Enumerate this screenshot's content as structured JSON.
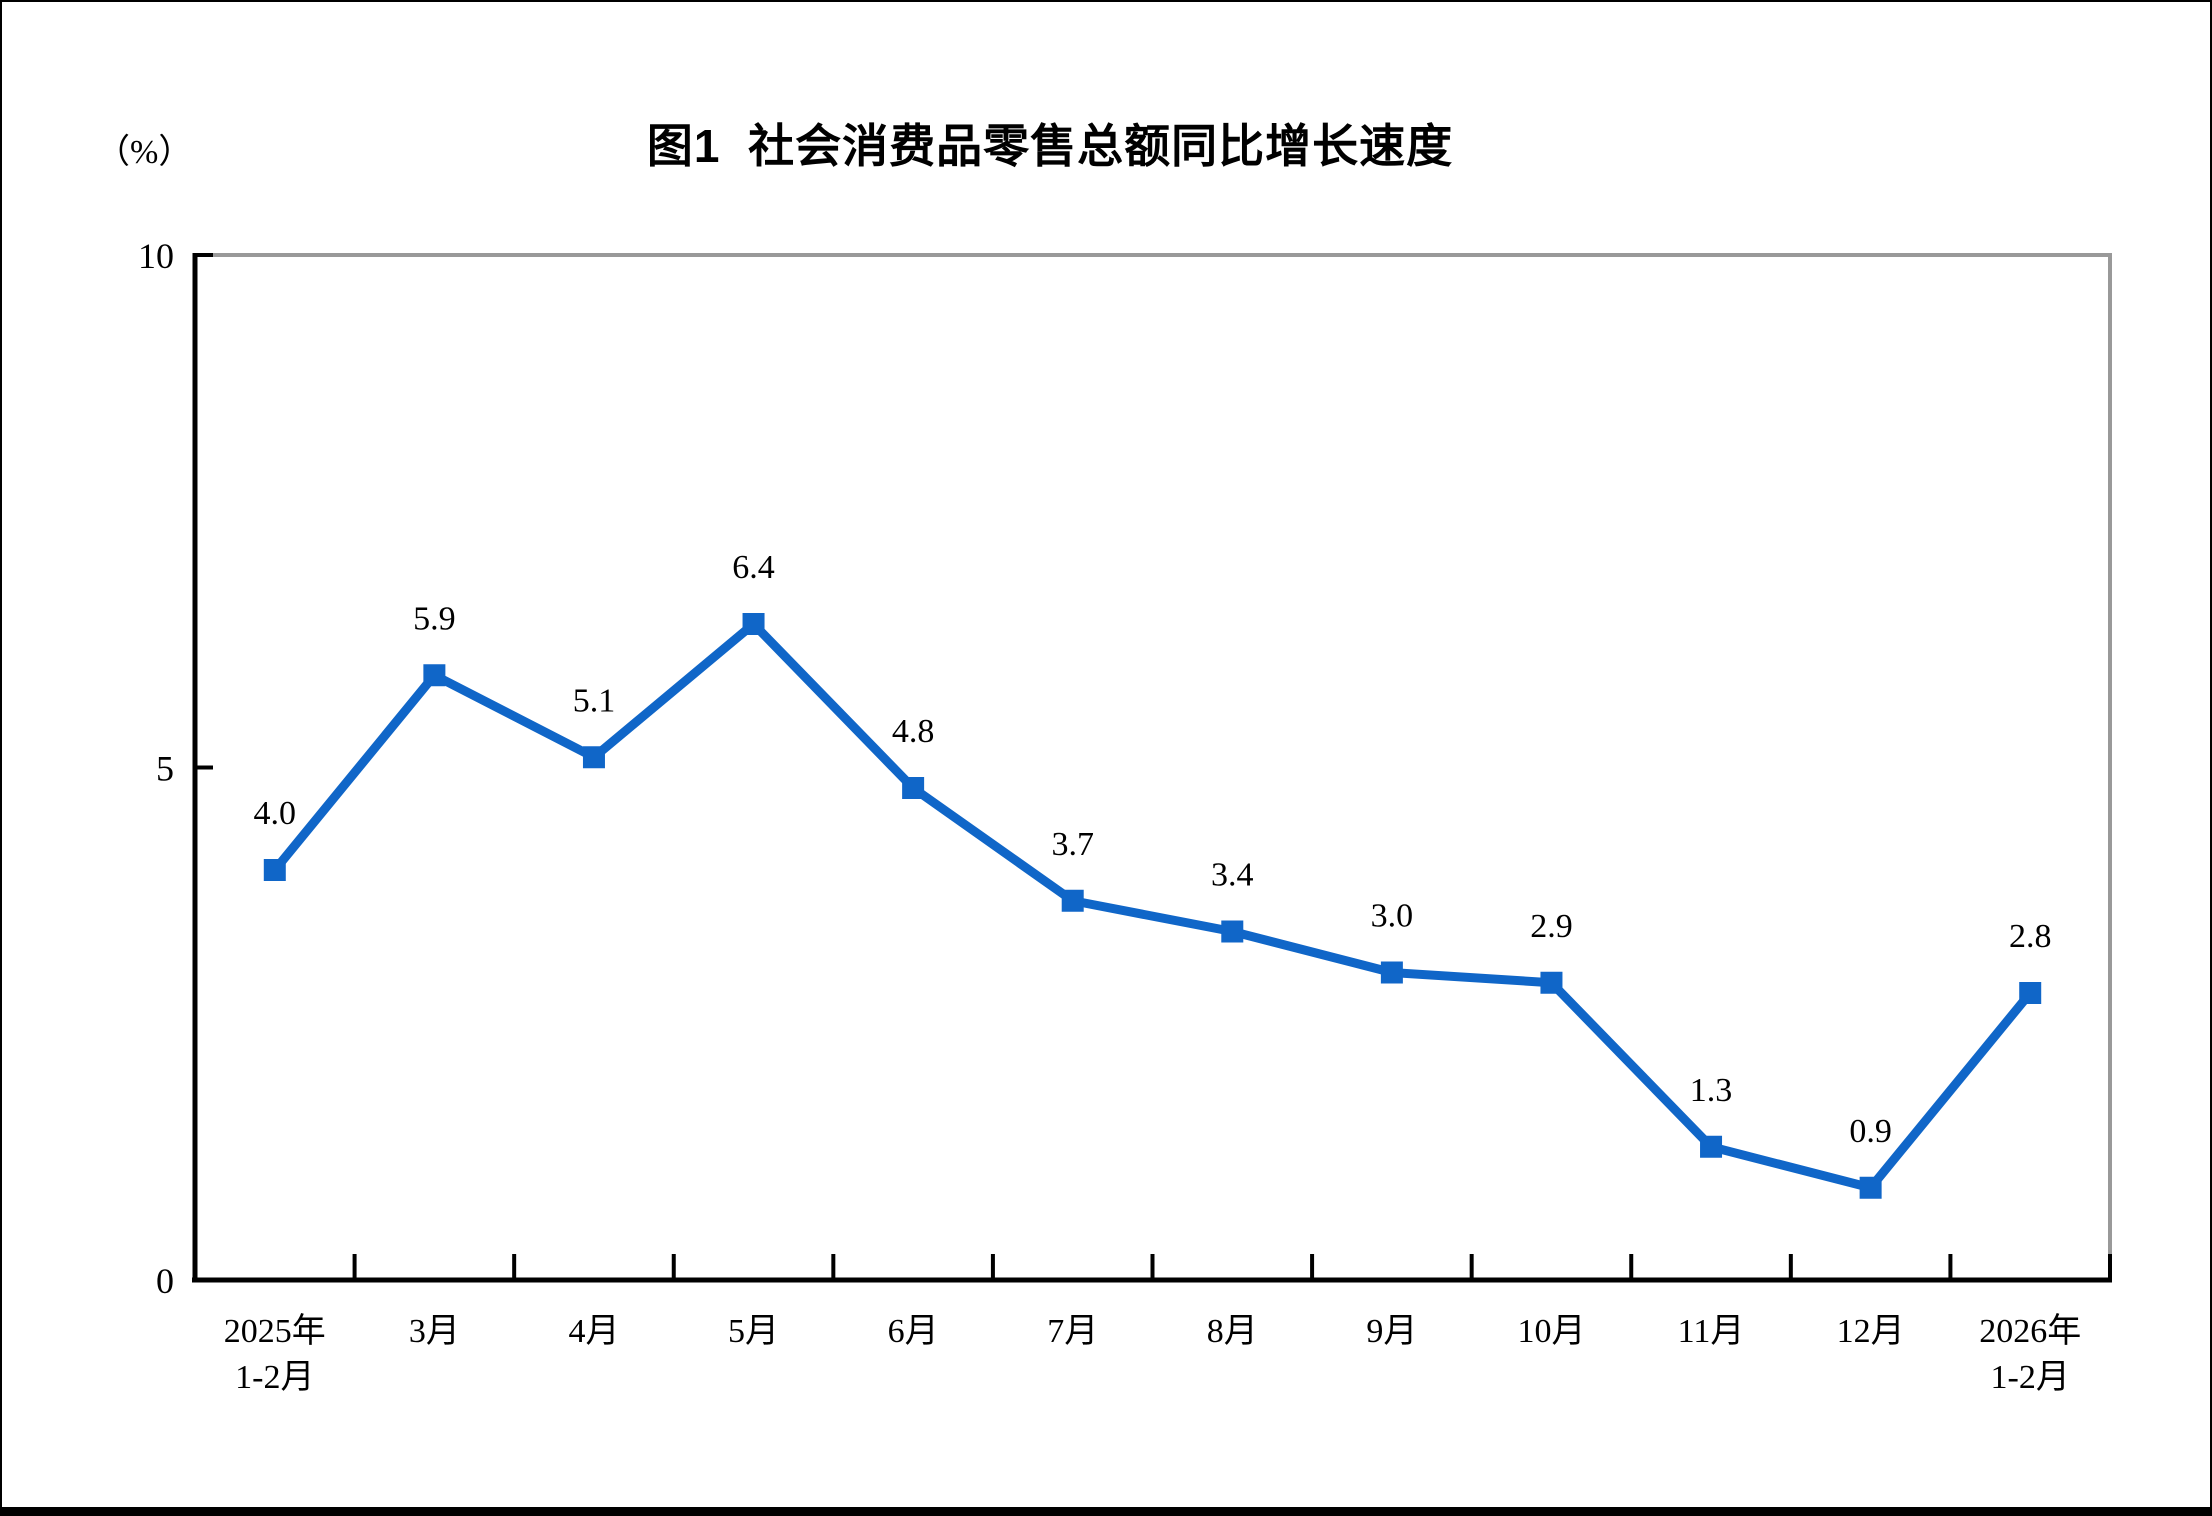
{
  "figure": {
    "title": "图1  社会消费品零售总额同比增长速度",
    "unit_label": "（%）"
  },
  "chart_data": {
    "type": "line",
    "title": "图1  社会消费品零售总额同比增长速度",
    "unit": "（%）",
    "categories": [
      [
        "2025年",
        "1-2月"
      ],
      [
        "3月"
      ],
      [
        "4月"
      ],
      [
        "5月"
      ],
      [
        "6月"
      ],
      [
        "7月"
      ],
      [
        "8月"
      ],
      [
        "9月"
      ],
      [
        "10月"
      ],
      [
        "11月"
      ],
      [
        "12月"
      ],
      [
        "2026年",
        "1-2月"
      ]
    ],
    "values": [
      4.0,
      5.9,
      5.1,
      6.4,
      4.8,
      3.7,
      3.4,
      3.0,
      2.9,
      1.3,
      0.9,
      2.8
    ],
    "point_labels": [
      "4.0",
      "5.9",
      "5.1",
      "6.4",
      "4.8",
      "3.7",
      "3.4",
      "3.0",
      "2.9",
      "1.3",
      "0.9",
      "2.8"
    ],
    "ylim": [
      0,
      10
    ],
    "yticks": [
      0,
      5,
      10
    ],
    "ytick_labels": [
      "0",
      "5",
      "10"
    ],
    "grid": false,
    "legend": "none",
    "marker": "square",
    "label_position": "above",
    "line_color": "#1066C8",
    "axis_color": "#000000",
    "border_color": "#999999"
  }
}
